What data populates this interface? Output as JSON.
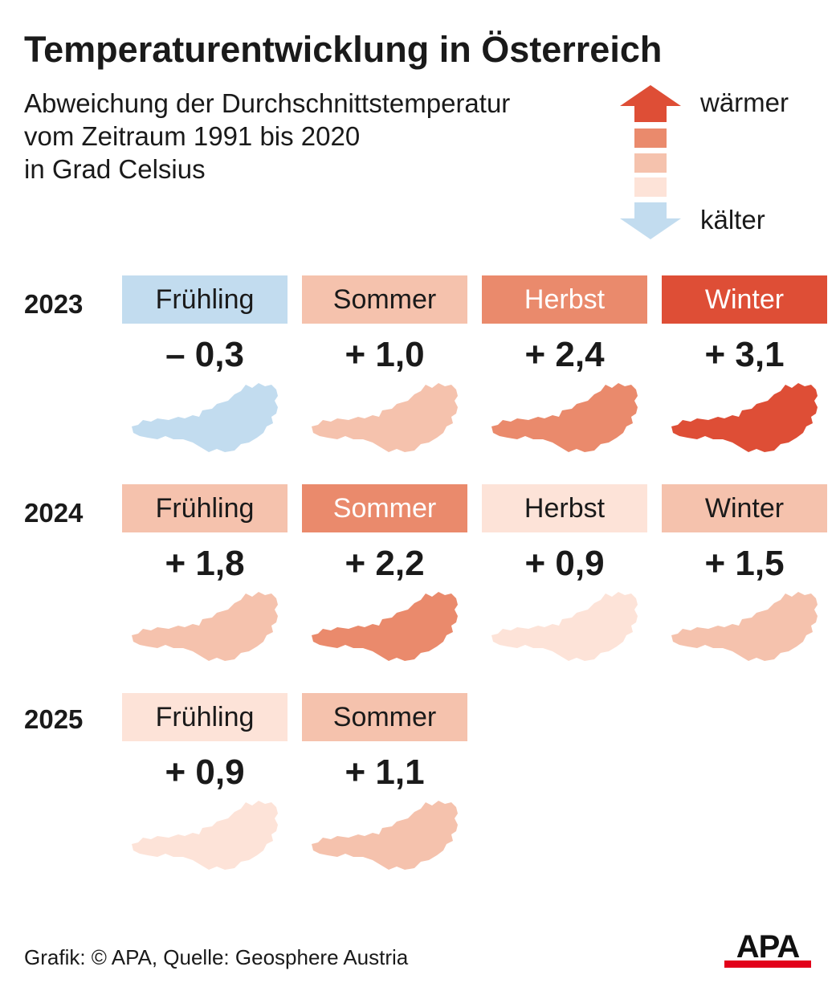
{
  "title": "Temperaturentwicklung in Österreich",
  "subtitle": [
    "Abweichung der Durchschnittstemperatur",
    "vom Zeitraum 1991 bis 2020",
    "in Grad Celsius"
  ],
  "legend": {
    "warm_label": "wärmer",
    "cold_label": "kälter",
    "colors": [
      "#de4e36",
      "#ea8a6c",
      "#f5c2ad",
      "#fde3d8",
      "#c2dcef"
    ]
  },
  "colors": {
    "cold": "#c2dcef",
    "very_light": "#fde3d8",
    "light": "#f5c2ad",
    "medium": "#ea8a6c",
    "strong": "#de4e36"
  },
  "years": [
    {
      "year": "2023",
      "seasons": [
        {
          "name": "Frühling",
          "value": "– 0,3",
          "color": "#c2dcef",
          "light_text": false
        },
        {
          "name": "Sommer",
          "value": "+ 1,0",
          "color": "#f5c2ad",
          "light_text": false
        },
        {
          "name": "Herbst",
          "value": "+ 2,4",
          "color": "#ea8a6c",
          "light_text": true
        },
        {
          "name": "Winter",
          "value": "+ 3,1",
          "color": "#de4e36",
          "light_text": true
        }
      ]
    },
    {
      "year": "2024",
      "seasons": [
        {
          "name": "Frühling",
          "value": "+ 1,8",
          "color": "#f5c2ad",
          "light_text": false
        },
        {
          "name": "Sommer",
          "value": "+ 2,2",
          "color": "#ea8a6c",
          "light_text": true
        },
        {
          "name": "Herbst",
          "value": "+ 0,9",
          "color": "#fde3d8",
          "light_text": false
        },
        {
          "name": "Winter",
          "value": "+ 1,5",
          "color": "#f5c2ad",
          "light_text": false
        }
      ]
    },
    {
      "year": "2025",
      "seasons": [
        {
          "name": "Frühling",
          "value": "+ 0,9",
          "color": "#fde3d8",
          "light_text": false
        },
        {
          "name": "Sommer",
          "value": "+ 1,1",
          "color": "#f5c2ad",
          "light_text": false
        }
      ]
    }
  ],
  "footer": "Grafik: © APA, Quelle: Geosphere Austria",
  "logo": {
    "text": "APA",
    "icon": "apa-logo-icon"
  }
}
